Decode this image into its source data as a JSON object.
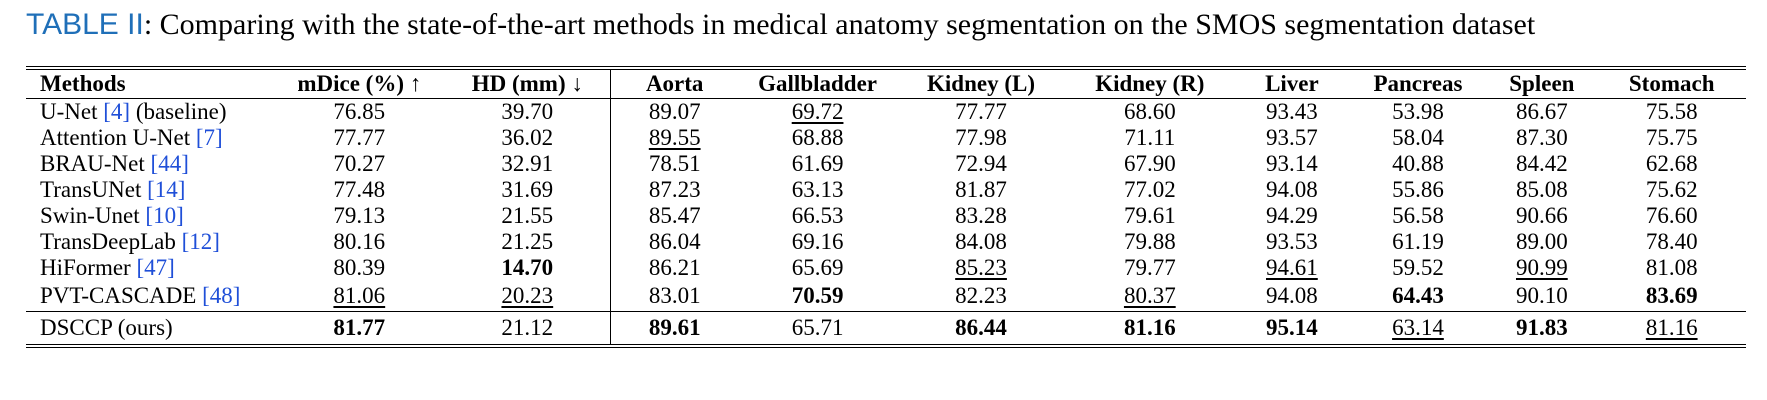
{
  "caption": {
    "label": "TABLE II",
    "text": ": Comparing with the state-of-the-art methods in medical anatomy segmentation on the SMOS segmentation dataset"
  },
  "table": {
    "headers": [
      "Methods",
      "mDice (%) ↑",
      "HD (mm) ↓",
      "Aorta",
      "Gallbladder",
      "Kidney (L)",
      "Kidney (R)",
      "Liver",
      "Pancreas",
      "Spleen",
      "Stomach"
    ],
    "rows": [
      {
        "name": "U-Net ",
        "cite": "[4]",
        "suffix": " (baseline)",
        "values": [
          "76.85",
          "39.70",
          "89.07",
          "69.72",
          "77.77",
          "68.60",
          "93.43",
          "53.98",
          "86.67",
          "75.58"
        ]
      },
      {
        "name": "Attention U-Net ",
        "cite": "[7]",
        "suffix": "",
        "values": [
          "77.77",
          "36.02",
          "89.55",
          "68.88",
          "77.98",
          "71.11",
          "93.57",
          "58.04",
          "87.30",
          "75.75"
        ]
      },
      {
        "name": "BRAU-Net ",
        "cite": "[44]",
        "suffix": "",
        "values": [
          "70.27",
          "32.91",
          "78.51",
          "61.69",
          "72.94",
          "67.90",
          "93.14",
          "40.88",
          "84.42",
          "62.68"
        ]
      },
      {
        "name": "TransUNet ",
        "cite": "[14]",
        "suffix": "",
        "values": [
          "77.48",
          "31.69",
          "87.23",
          "63.13",
          "81.87",
          "77.02",
          "94.08",
          "55.86",
          "85.08",
          "75.62"
        ]
      },
      {
        "name": "Swin-Unet ",
        "cite": "[10]",
        "suffix": "",
        "values": [
          "79.13",
          "21.55",
          "85.47",
          "66.53",
          "83.28",
          "79.61",
          "94.29",
          "56.58",
          "90.66",
          "76.60"
        ]
      },
      {
        "name": "TransDeepLab ",
        "cite": "[12]",
        "suffix": "",
        "values": [
          "80.16",
          "21.25",
          "86.04",
          "69.16",
          "84.08",
          "79.88",
          "93.53",
          "61.19",
          "89.00",
          "78.40"
        ]
      },
      {
        "name": "HiFormer ",
        "cite": "[47]",
        "suffix": "",
        "values": [
          "80.39",
          "14.70",
          "86.21",
          "65.69",
          "85.23",
          "79.77",
          "94.61",
          "59.52",
          "90.99",
          "81.08"
        ]
      },
      {
        "name": "PVT-CASCADE ",
        "cite": "[48]",
        "suffix": "",
        "values": [
          "81.06",
          "20.23",
          "83.01",
          "70.59",
          "82.23",
          "80.37",
          "94.08",
          "64.43",
          "90.10",
          "83.69"
        ]
      }
    ],
    "ours": {
      "name": "DSCCP (ours)",
      "values": [
        "81.77",
        "21.12",
        "89.61",
        "65.71",
        "86.44",
        "81.16",
        "95.14",
        "63.14",
        "91.83",
        "81.16"
      ]
    }
  }
}
